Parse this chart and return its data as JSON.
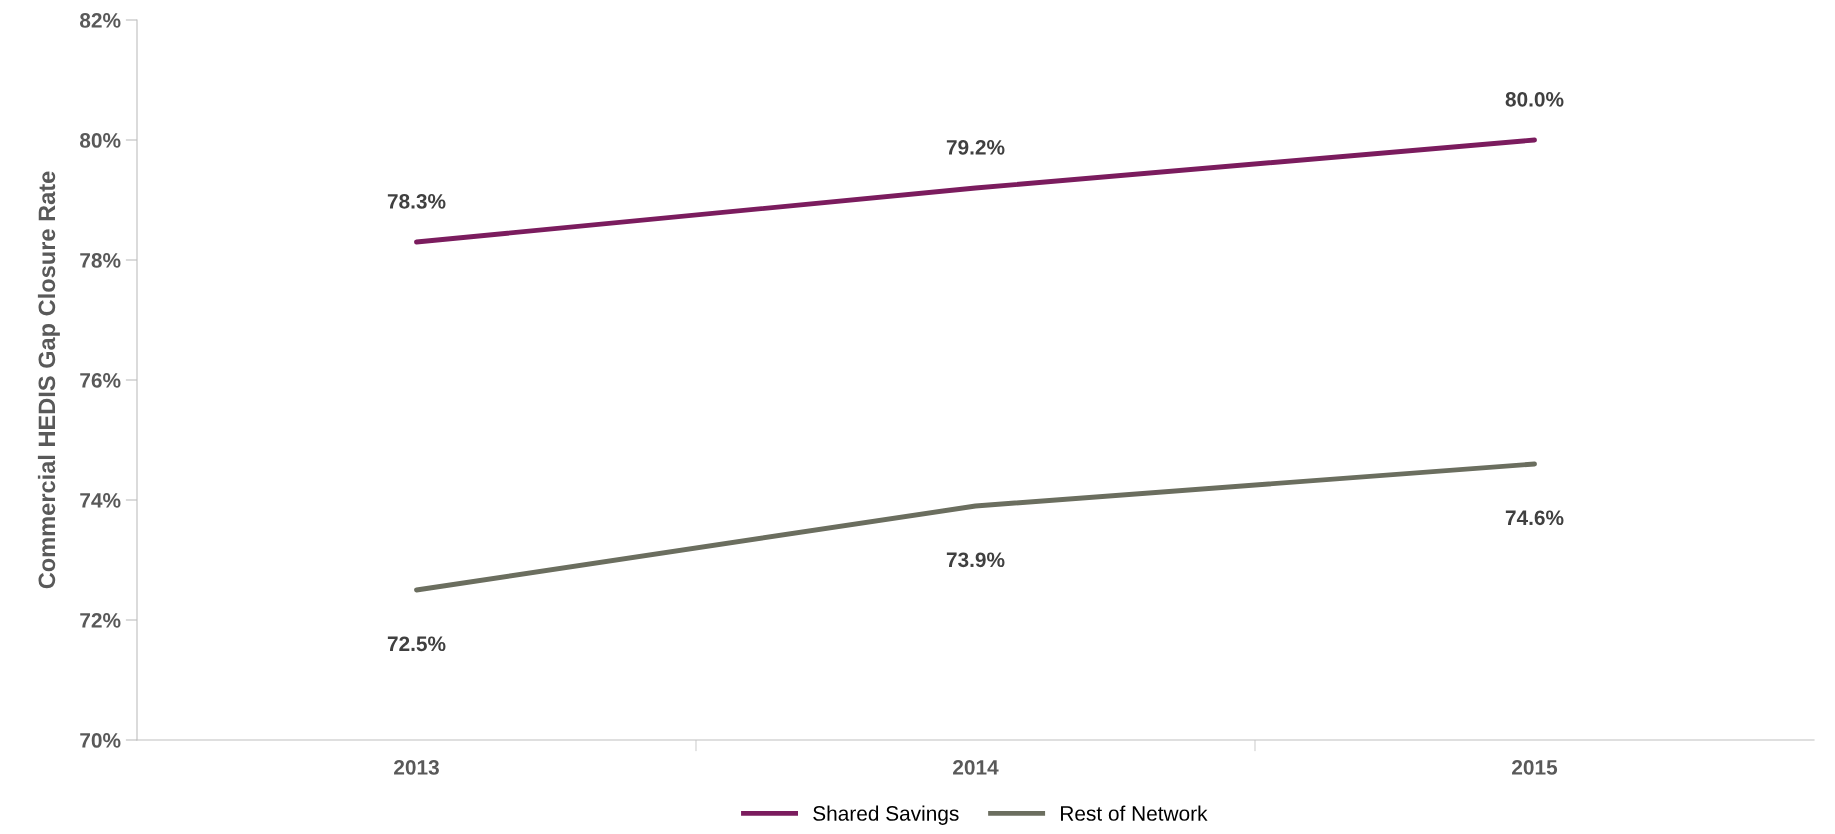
{
  "chart_data": {
    "type": "line",
    "ylabel": "Commercial HEDIS Gap Closure Rate",
    "categories": [
      "2013",
      "2014",
      "2015"
    ],
    "series": [
      {
        "name": "Shared Savings",
        "color": "#7b1c5e",
        "values": [
          78.3,
          79.2,
          80.0
        ],
        "value_labels": [
          "78.3%",
          "79.2%",
          "80.0%"
        ]
      },
      {
        "name": "Rest of Network",
        "color": "#6b6e5f",
        "values": [
          72.5,
          73.9,
          74.6
        ],
        "value_labels": [
          "72.5%",
          "73.9%",
          "74.6%"
        ]
      }
    ],
    "ylim": [
      70,
      82
    ],
    "yticks": [
      {
        "value": 70,
        "label": "70%"
      },
      {
        "value": 72,
        "label": "72%"
      },
      {
        "value": 74,
        "label": "74%"
      },
      {
        "value": 76,
        "label": "76%"
      },
      {
        "value": 78,
        "label": "78%"
      },
      {
        "value": 80,
        "label": "80%"
      },
      {
        "value": 82,
        "label": "82%"
      }
    ],
    "grid": false,
    "legend": "bottom",
    "marker": "none",
    "line_style": "solid"
  }
}
